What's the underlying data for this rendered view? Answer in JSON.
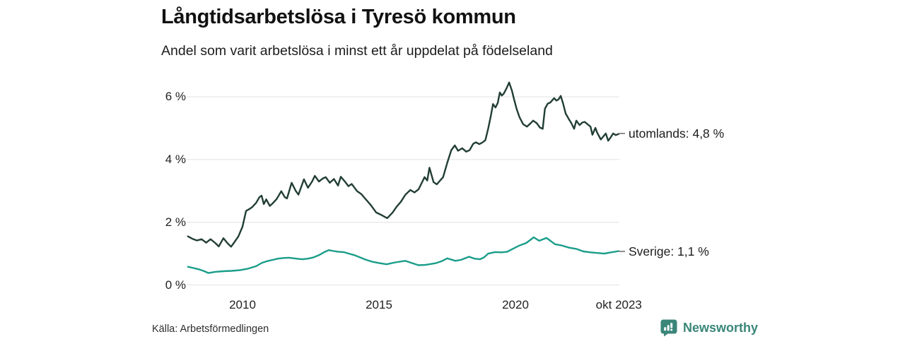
{
  "title": "Långtidsarbetslösa i Tyresö kommun",
  "subtitle": "Andel som varit arbetslösa i minst ett år uppdelat på födelseland",
  "source": "Källa: Arbetsförmedlingen",
  "branding": {
    "name": "Newsworthy",
    "icon": "bar-chart-bubble-icon",
    "color": "#3a8679"
  },
  "colors": {
    "utomlands_line": "#223e34",
    "sverige_line": "#1a9d89",
    "grid": "#e7e7e7",
    "label_dash": "#8f8f8f"
  },
  "chart_data": {
    "type": "line",
    "title": "Långtidsarbetslösa i Tyresö kommun",
    "subtitle": "Andel som varit arbetslösa i minst ett år uppdelat på födelseland",
    "unit": "%",
    "grid": true,
    "legend_position": "right-of-line-end",
    "xlim": [
      2008.0,
      2023.83
    ],
    "ylim": [
      0,
      6.6
    ],
    "x_axis": {
      "ticks": [
        {
          "label": "2010",
          "year": 2010
        },
        {
          "label": "2015",
          "year": 2015
        },
        {
          "label": "2020",
          "year": 2020
        },
        {
          "label": "okt 2023",
          "year": 2023.79
        }
      ]
    },
    "y_axis": {
      "ticks": [
        {
          "label": "6 %",
          "value": 6
        },
        {
          "label": "4 %",
          "value": 4
        },
        {
          "label": "2 %",
          "value": 2
        },
        {
          "label": "0 %",
          "value": 0
        }
      ]
    },
    "series": [
      {
        "name": "utomlands",
        "end_label": "utomlands: 4,8 %",
        "end_value": "4,8 %",
        "color": "#223e34",
        "points": [
          [
            2008.0,
            1.55
          ],
          [
            2008.17,
            1.47
          ],
          [
            2008.33,
            1.42
          ],
          [
            2008.5,
            1.46
          ],
          [
            2008.67,
            1.35
          ],
          [
            2008.83,
            1.46
          ],
          [
            2009.0,
            1.34
          ],
          [
            2009.13,
            1.23
          ],
          [
            2009.3,
            1.49
          ],
          [
            2009.45,
            1.33
          ],
          [
            2009.58,
            1.22
          ],
          [
            2009.7,
            1.36
          ],
          [
            2009.85,
            1.55
          ],
          [
            2010.0,
            1.86
          ],
          [
            2010.13,
            2.36
          ],
          [
            2010.25,
            2.42
          ],
          [
            2010.35,
            2.48
          ],
          [
            2010.5,
            2.62
          ],
          [
            2010.62,
            2.8
          ],
          [
            2010.7,
            2.85
          ],
          [
            2010.78,
            2.58
          ],
          [
            2010.87,
            2.73
          ],
          [
            2011.0,
            2.52
          ],
          [
            2011.1,
            2.6
          ],
          [
            2011.25,
            2.74
          ],
          [
            2011.42,
            2.99
          ],
          [
            2011.55,
            2.8
          ],
          [
            2011.63,
            2.76
          ],
          [
            2011.8,
            3.26
          ],
          [
            2011.95,
            3.0
          ],
          [
            2012.05,
            2.88
          ],
          [
            2012.25,
            3.37
          ],
          [
            2012.4,
            3.1
          ],
          [
            2012.55,
            3.3
          ],
          [
            2012.65,
            3.48
          ],
          [
            2012.8,
            3.3
          ],
          [
            2012.95,
            3.4
          ],
          [
            2013.05,
            3.44
          ],
          [
            2013.2,
            3.26
          ],
          [
            2013.35,
            3.38
          ],
          [
            2013.5,
            3.17
          ],
          [
            2013.6,
            3.45
          ],
          [
            2013.75,
            3.3
          ],
          [
            2013.88,
            3.15
          ],
          [
            2014.0,
            3.22
          ],
          [
            2014.2,
            2.99
          ],
          [
            2014.35,
            2.9
          ],
          [
            2014.55,
            2.7
          ],
          [
            2014.7,
            2.55
          ],
          [
            2014.9,
            2.31
          ],
          [
            2015.05,
            2.25
          ],
          [
            2015.3,
            2.13
          ],
          [
            2015.5,
            2.31
          ],
          [
            2015.65,
            2.5
          ],
          [
            2015.8,
            2.65
          ],
          [
            2015.97,
            2.88
          ],
          [
            2016.15,
            3.03
          ],
          [
            2016.3,
            2.95
          ],
          [
            2016.45,
            3.05
          ],
          [
            2016.67,
            3.44
          ],
          [
            2016.77,
            3.33
          ],
          [
            2016.85,
            3.74
          ],
          [
            2017.0,
            3.28
          ],
          [
            2017.12,
            3.21
          ],
          [
            2017.35,
            3.44
          ],
          [
            2017.5,
            3.89
          ],
          [
            2017.65,
            4.3
          ],
          [
            2017.78,
            4.45
          ],
          [
            2017.9,
            4.28
          ],
          [
            2018.05,
            4.36
          ],
          [
            2018.2,
            4.25
          ],
          [
            2018.32,
            4.3
          ],
          [
            2018.45,
            4.5
          ],
          [
            2018.55,
            4.55
          ],
          [
            2018.68,
            4.49
          ],
          [
            2018.8,
            4.55
          ],
          [
            2018.9,
            4.62
          ],
          [
            2019.0,
            4.98
          ],
          [
            2019.1,
            5.4
          ],
          [
            2019.18,
            5.77
          ],
          [
            2019.27,
            5.66
          ],
          [
            2019.35,
            5.8
          ],
          [
            2019.43,
            6.14
          ],
          [
            2019.5,
            6.04
          ],
          [
            2019.57,
            6.1
          ],
          [
            2019.68,
            6.28
          ],
          [
            2019.77,
            6.46
          ],
          [
            2019.87,
            6.2
          ],
          [
            2019.95,
            5.92
          ],
          [
            2020.05,
            5.6
          ],
          [
            2020.15,
            5.35
          ],
          [
            2020.28,
            5.13
          ],
          [
            2020.42,
            5.05
          ],
          [
            2020.55,
            5.15
          ],
          [
            2020.65,
            5.24
          ],
          [
            2020.78,
            5.16
          ],
          [
            2020.9,
            5.02
          ],
          [
            2021.0,
            4.98
          ],
          [
            2021.08,
            5.62
          ],
          [
            2021.18,
            5.78
          ],
          [
            2021.28,
            5.82
          ],
          [
            2021.42,
            5.96
          ],
          [
            2021.5,
            5.88
          ],
          [
            2021.58,
            5.92
          ],
          [
            2021.66,
            6.03
          ],
          [
            2021.75,
            5.78
          ],
          [
            2021.84,
            5.47
          ],
          [
            2021.95,
            5.3
          ],
          [
            2022.05,
            5.16
          ],
          [
            2022.15,
            4.98
          ],
          [
            2022.23,
            5.24
          ],
          [
            2022.35,
            5.1
          ],
          [
            2022.45,
            5.18
          ],
          [
            2022.54,
            5.2
          ],
          [
            2022.65,
            5.12
          ],
          [
            2022.75,
            5.05
          ],
          [
            2022.82,
            4.79
          ],
          [
            2022.93,
            5.01
          ],
          [
            2023.0,
            4.85
          ],
          [
            2023.13,
            4.64
          ],
          [
            2023.31,
            4.83
          ],
          [
            2023.4,
            4.6
          ],
          [
            2023.5,
            4.72
          ],
          [
            2023.58,
            4.83
          ],
          [
            2023.68,
            4.78
          ],
          [
            2023.79,
            4.82
          ]
        ]
      },
      {
        "name": "Sverige",
        "end_label": "Sverige: 1,1 %",
        "end_value": "1,1 %",
        "color": "#1a9d89",
        "points": [
          [
            2008.0,
            0.58
          ],
          [
            2008.2,
            0.54
          ],
          [
            2008.4,
            0.5
          ],
          [
            2008.6,
            0.44
          ],
          [
            2008.75,
            0.38
          ],
          [
            2009.0,
            0.42
          ],
          [
            2009.3,
            0.44
          ],
          [
            2009.6,
            0.45
          ],
          [
            2009.9,
            0.47
          ],
          [
            2010.2,
            0.52
          ],
          [
            2010.5,
            0.6
          ],
          [
            2010.7,
            0.7
          ],
          [
            2010.9,
            0.76
          ],
          [
            2011.1,
            0.8
          ],
          [
            2011.3,
            0.84
          ],
          [
            2011.5,
            0.86
          ],
          [
            2011.7,
            0.87
          ],
          [
            2011.9,
            0.85
          ],
          [
            2012.05,
            0.83
          ],
          [
            2012.2,
            0.82
          ],
          [
            2012.4,
            0.84
          ],
          [
            2012.6,
            0.88
          ],
          [
            2012.8,
            0.95
          ],
          [
            2013.0,
            1.05
          ],
          [
            2013.16,
            1.11
          ],
          [
            2013.35,
            1.08
          ],
          [
            2013.5,
            1.06
          ],
          [
            2013.7,
            1.05
          ],
          [
            2013.9,
            1.0
          ],
          [
            2014.1,
            0.95
          ],
          [
            2014.3,
            0.88
          ],
          [
            2014.5,
            0.81
          ],
          [
            2014.75,
            0.74
          ],
          [
            2015.0,
            0.7
          ],
          [
            2015.28,
            0.66
          ],
          [
            2015.6,
            0.72
          ],
          [
            2015.96,
            0.77
          ],
          [
            2016.2,
            0.7
          ],
          [
            2016.45,
            0.63
          ],
          [
            2016.7,
            0.64
          ],
          [
            2016.9,
            0.67
          ],
          [
            2017.1,
            0.7
          ],
          [
            2017.3,
            0.76
          ],
          [
            2017.5,
            0.85
          ],
          [
            2017.8,
            0.77
          ],
          [
            2018.0,
            0.8
          ],
          [
            2018.3,
            0.9
          ],
          [
            2018.5,
            0.84
          ],
          [
            2018.7,
            0.82
          ],
          [
            2018.85,
            0.88
          ],
          [
            2019.0,
            1.0
          ],
          [
            2019.26,
            1.05
          ],
          [
            2019.5,
            1.04
          ],
          [
            2019.7,
            1.06
          ],
          [
            2019.9,
            1.15
          ],
          [
            2020.15,
            1.26
          ],
          [
            2020.4,
            1.34
          ],
          [
            2020.67,
            1.52
          ],
          [
            2020.87,
            1.41
          ],
          [
            2021.14,
            1.5
          ],
          [
            2021.45,
            1.3
          ],
          [
            2021.7,
            1.26
          ],
          [
            2021.97,
            1.19
          ],
          [
            2022.23,
            1.15
          ],
          [
            2022.49,
            1.07
          ],
          [
            2022.75,
            1.04
          ],
          [
            2023.0,
            1.02
          ],
          [
            2023.26,
            1.0
          ],
          [
            2023.5,
            1.04
          ],
          [
            2023.79,
            1.08
          ]
        ]
      }
    ]
  }
}
